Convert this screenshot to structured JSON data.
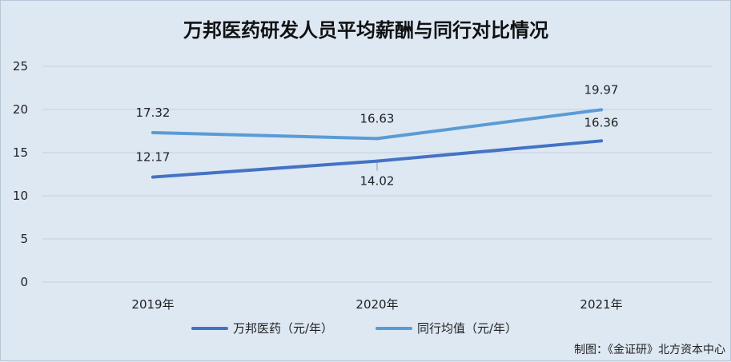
{
  "chart_data": {
    "type": "line",
    "title": "万邦医药研发人员平均薪酬与同行对比情况",
    "categories": [
      "2019年",
      "2020年",
      "2021年"
    ],
    "ylim": [
      0,
      25
    ],
    "yticks": [
      "0",
      "5",
      "10",
      "15",
      "20",
      "25"
    ],
    "grid": true,
    "legend_position": "bottom",
    "series": [
      {
        "name": "万邦医药（元/年）",
        "values": [
          12.17,
          14.02,
          16.36
        ],
        "labels": [
          "12.17",
          "14.02",
          "16.36"
        ],
        "color": "#4472c4"
      },
      {
        "name": "同行均值（元/年）",
        "values": [
          17.32,
          16.63,
          19.97
        ],
        "labels": [
          "17.32",
          "16.63",
          "19.97"
        ],
        "color": "#5b9bd5"
      }
    ],
    "credit": "制图：《金证研》北方资本中心"
  }
}
